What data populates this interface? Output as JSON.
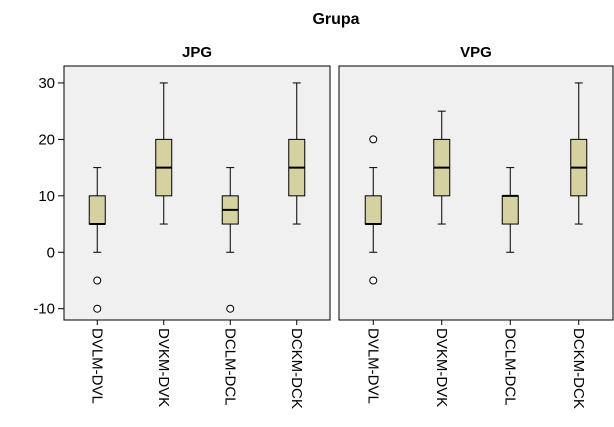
{
  "chart_data": {
    "type": "boxplot",
    "title": "Grupa",
    "xlabel": "",
    "ylabel": "",
    "ylim": [
      -12,
      33
    ],
    "yticks": [
      -10,
      0,
      10,
      20,
      30
    ],
    "grid": false,
    "categories": [
      "DVLM-DVL",
      "DVKM-DVK",
      "DCLM-DCL",
      "DCKM-DCK"
    ],
    "panels": [
      {
        "name": "JPG",
        "boxes": [
          {
            "category": "DVLM-DVL",
            "min": 0,
            "q1": 5,
            "median": 5,
            "q3": 10,
            "max": 15,
            "outliers": [
              -5,
              -10
            ]
          },
          {
            "category": "DVKM-DVK",
            "min": 5,
            "q1": 10,
            "median": 15,
            "q3": 20,
            "max": 30,
            "outliers": []
          },
          {
            "category": "DCLM-DCL",
            "min": 0,
            "q1": 5,
            "median": 7.5,
            "q3": 10,
            "max": 15,
            "outliers": [
              -10
            ]
          },
          {
            "category": "DCKM-DCK",
            "min": 5,
            "q1": 10,
            "median": 15,
            "q3": 20,
            "max": 30,
            "outliers": []
          }
        ]
      },
      {
        "name": "VPG",
        "boxes": [
          {
            "category": "DVLM-DVL",
            "min": 0,
            "q1": 5,
            "median": 5,
            "q3": 10,
            "max": 15,
            "outliers": [
              20,
              -5
            ]
          },
          {
            "category": "DVKM-DVK",
            "min": 5,
            "q1": 10,
            "median": 15,
            "q3": 20,
            "max": 25,
            "outliers": []
          },
          {
            "category": "DCLM-DCL",
            "min": 0,
            "q1": 5,
            "median": 10,
            "q3": 10,
            "max": 15,
            "outliers": []
          },
          {
            "category": "DCKM-DCK",
            "min": 5,
            "q1": 10,
            "median": 15,
            "q3": 20,
            "max": 30,
            "outliers": []
          }
        ]
      }
    ],
    "colors": {
      "box_fill": "#d6d1a0",
      "panel_bg": "#f0f0f0",
      "line": "#000000"
    }
  }
}
